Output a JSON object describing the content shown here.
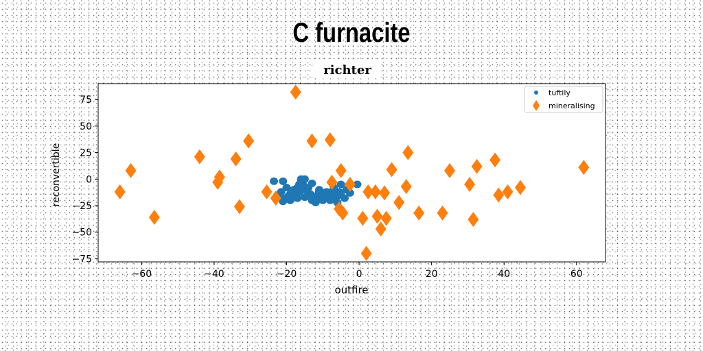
{
  "page_title": "C furnacite",
  "chart_data": {
    "type": "scatter",
    "title": "richter",
    "xlabel": "outfire",
    "ylabel": "reconvertible",
    "xlim": [
      -72,
      68
    ],
    "ylim": [
      -78,
      90
    ],
    "xticks": [
      -60,
      -40,
      -20,
      0,
      20,
      40,
      60
    ],
    "yticks": [
      -75,
      -50,
      -25,
      0,
      25,
      50,
      75
    ],
    "grid": false,
    "legend_position": "top-right",
    "series": [
      {
        "name": "tuftily",
        "marker": "circle",
        "color": "#1f77b4",
        "points": [
          [
            -23.5,
            -2
          ],
          [
            -21.0,
            -2
          ],
          [
            -20.0,
            -8
          ],
          [
            -21.5,
            -12
          ],
          [
            -22.5,
            -15
          ],
          [
            -20.5,
            -18
          ],
          [
            -19.0,
            -20
          ],
          [
            -21.0,
            -21
          ],
          [
            -19.0,
            -14
          ],
          [
            -18.0,
            -10
          ],
          [
            -17.0,
            -8
          ],
          [
            -16.5,
            -5
          ],
          [
            -16.0,
            0
          ],
          [
            -15.0,
            0
          ],
          [
            -15.5,
            -5
          ],
          [
            -15.0,
            -10
          ],
          [
            -16.5,
            -12
          ],
          [
            -17.5,
            -15
          ],
          [
            -18.5,
            -18
          ],
          [
            -17.0,
            -18
          ],
          [
            -15.0,
            -17
          ],
          [
            -13.5,
            -14
          ],
          [
            -13.0,
            -20
          ],
          [
            -14.0,
            -8
          ],
          [
            -13.0,
            -4
          ],
          [
            -12.0,
            -16
          ],
          [
            -11.0,
            -12
          ],
          [
            -10.5,
            -18
          ],
          [
            -9.5,
            -14
          ],
          [
            -8.5,
            -16
          ],
          [
            -8.0,
            -20
          ],
          [
            -7.5,
            -12
          ],
          [
            -6.5,
            -18
          ],
          [
            -6.0,
            -22
          ],
          [
            -7.0,
            -8
          ],
          [
            -5.5,
            -12
          ],
          [
            -5.0,
            -15
          ],
          [
            -4.0,
            -18
          ],
          [
            -3.5,
            -10
          ],
          [
            -2.5,
            -13
          ],
          [
            -0.5,
            -5
          ],
          [
            -10.0,
            -20
          ],
          [
            -12.0,
            -22
          ],
          [
            -11.0,
            -10
          ],
          [
            -5.0,
            -5
          ],
          [
            -19.5,
            -16
          ],
          [
            -16.0,
            -2
          ],
          [
            -9.0,
            -12
          ],
          [
            -14.0,
            -16
          ],
          [
            -7.0,
            -16
          ]
        ]
      },
      {
        "name": "mineralising",
        "marker": "diamond",
        "color": "#ff7f0e",
        "points": [
          [
            -66,
            -12
          ],
          [
            -63,
            8
          ],
          [
            -56.5,
            -36
          ],
          [
            -44,
            21
          ],
          [
            -39,
            -3
          ],
          [
            -38.5,
            2
          ],
          [
            -34,
            19
          ],
          [
            -33,
            -26
          ],
          [
            -30.5,
            36
          ],
          [
            -25.5,
            -12
          ],
          [
            -23,
            -18
          ],
          [
            -17.5,
            82
          ],
          [
            -13,
            36
          ],
          [
            -8,
            37
          ],
          [
            -7.5,
            -3
          ],
          [
            -5.5,
            -28
          ],
          [
            -5,
            8
          ],
          [
            -4.5,
            -32
          ],
          [
            -2.5,
            -5
          ],
          [
            1,
            -37
          ],
          [
            2,
            -70
          ],
          [
            2.5,
            -12
          ],
          [
            4.5,
            -12
          ],
          [
            5,
            -35
          ],
          [
            6,
            -47
          ],
          [
            7,
            -13
          ],
          [
            7.5,
            -37
          ],
          [
            9,
            9
          ],
          [
            11,
            -22
          ],
          [
            13,
            -7
          ],
          [
            13.5,
            25
          ],
          [
            16.5,
            -32
          ],
          [
            23,
            -32
          ],
          [
            25,
            8
          ],
          [
            30.5,
            -5
          ],
          [
            31.5,
            -38
          ],
          [
            32.5,
            12
          ],
          [
            37.5,
            18
          ],
          [
            38.5,
            -15
          ],
          [
            41,
            -12
          ],
          [
            44.5,
            -8
          ],
          [
            62,
            11
          ]
        ]
      }
    ]
  }
}
